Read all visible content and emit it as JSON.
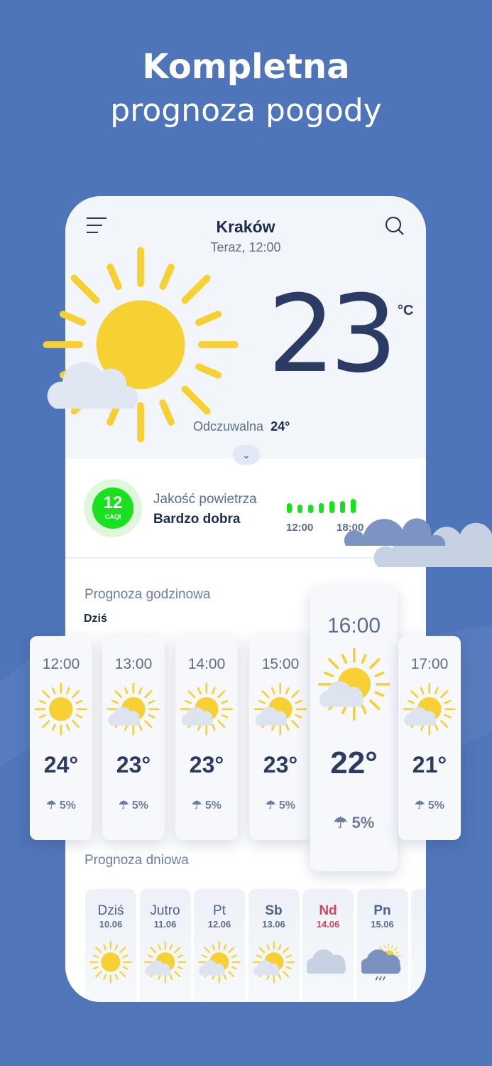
{
  "promo": {
    "line1": "Kompletna",
    "line2": "prognoza pogody"
  },
  "header": {
    "city": "Kraków",
    "time": "Teraz, 12:00"
  },
  "current": {
    "temp": "23",
    "unit": "°C",
    "feels_label": "Odczuwalna",
    "feels_value": "24°",
    "icon": "sun-cloud-icon"
  },
  "air": {
    "value": "12",
    "index": "CAQI",
    "title": "Jakość powietrza",
    "status": "Bardzo dobra",
    "labels": [
      "12:00",
      "18:00"
    ],
    "levels": [
      0.5,
      0.4,
      0.4,
      0.5,
      0.6,
      0.6,
      0.7
    ],
    "color": "#19e11e"
  },
  "hourly": {
    "title": "Prognoza godzinowa",
    "day": "Dziś",
    "items": [
      {
        "hour": "12:00",
        "temp": "24°",
        "rain": "5%",
        "icon": "sun"
      },
      {
        "hour": "13:00",
        "temp": "23°",
        "rain": "5%",
        "icon": "sun-cloud"
      },
      {
        "hour": "14:00",
        "temp": "23°",
        "rain": "5%",
        "icon": "sun-cloud"
      },
      {
        "hour": "15:00",
        "temp": "23°",
        "rain": "5%",
        "icon": "sun-cloud"
      },
      {
        "hour": "16:00",
        "temp": "22°",
        "rain": "5%",
        "icon": "sun-cloud"
      },
      {
        "hour": "17:00",
        "temp": "21°",
        "rain": "5%",
        "icon": "sun-cloud"
      }
    ]
  },
  "daily": {
    "title": "Prognoza dniowa",
    "items": [
      {
        "day": "Dziś",
        "date": "10.06",
        "icon": "sun"
      },
      {
        "day": "Jutro",
        "date": "11.06",
        "icon": "sun-cloud"
      },
      {
        "day": "Pt",
        "date": "12.06",
        "icon": "sun-cloud"
      },
      {
        "day": "Sb",
        "date": "13.06",
        "icon": "sun-cloud"
      },
      {
        "day": "Nd",
        "date": "14.06",
        "icon": "cloud",
        "holiday": true
      },
      {
        "day": "Pn",
        "date": "15.06",
        "icon": "rain"
      }
    ]
  },
  "colors": {
    "background": "#4e74ba",
    "sun": "#f7d033",
    "text": "#2b3b63",
    "holiday": "#d0475c"
  }
}
